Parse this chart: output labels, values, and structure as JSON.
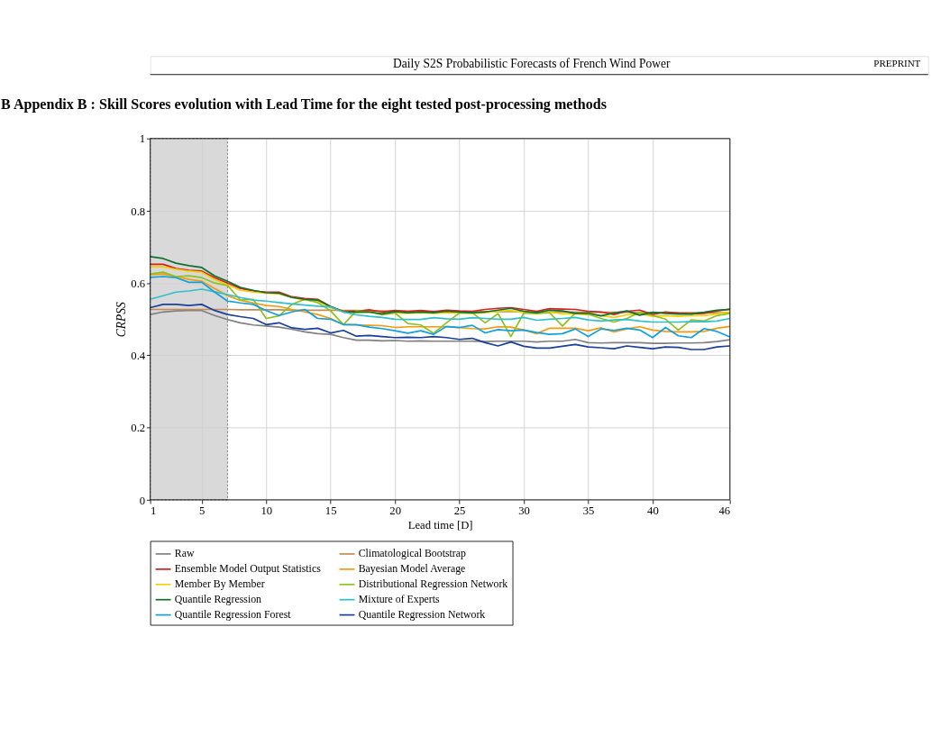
{
  "chart_data": {
    "type": "line",
    "title": "B    Appendix B : Skill Scores evolution with Lead Time for the eight tested post-processing methods",
    "annotations": [
      "Daily S2S Probabilistic Forecasts of French Wind Power",
      "PREPRINT"
    ],
    "xlabel": "Lead time [D]",
    "ylabel": "CRPSS",
    "x": [
      1,
      2,
      3,
      4,
      5,
      6,
      7,
      8,
      9,
      10,
      11,
      12,
      13,
      14,
      15,
      16,
      17,
      18,
      19,
      20,
      21,
      22,
      23,
      24,
      25,
      26,
      27,
      28,
      29,
      30,
      31,
      32,
      33,
      34,
      35,
      36,
      37,
      38,
      39,
      40,
      41,
      42,
      43,
      44,
      45,
      46
    ],
    "xlim": [
      1,
      46
    ],
    "xticks": [
      1,
      5,
      10,
      15,
      20,
      25,
      30,
      35,
      40,
      46
    ],
    "ylim": [
      0,
      1
    ],
    "yticks": [
      0,
      0.2,
      0.4,
      0.6,
      0.8,
      1
    ],
    "grid": true,
    "legend": "bottom",
    "marker": "none",
    "line_style": "solid",
    "bands": [
      {
        "axis": "x",
        "from": 1,
        "to": 7,
        "color": "#d0d0d0"
      }
    ],
    "series": [
      {
        "name": "Raw",
        "color": "#808080",
        "values": [
          0.513,
          0.52,
          0.523,
          0.524,
          0.524,
          0.51,
          0.499,
          0.49,
          0.484,
          0.481,
          0.478,
          0.472,
          0.465,
          0.46,
          0.458,
          0.449,
          0.442,
          0.442,
          0.44,
          0.441,
          0.439,
          0.44,
          0.439,
          0.439,
          0.439,
          0.439,
          0.438,
          0.439,
          0.439,
          0.439,
          0.437,
          0.439,
          0.439,
          0.444,
          0.435,
          0.434,
          0.435,
          0.435,
          0.435,
          0.433,
          0.433,
          0.434,
          0.434,
          0.435,
          0.438,
          0.443
        ]
      },
      {
        "name": "Climatological Bootstrap",
        "color": "#c48a55",
        "values": [
          0.527,
          0.527,
          0.527,
          0.527,
          0.527,
          0.527,
          0.527,
          0.526,
          0.526,
          0.526,
          0.526,
          0.525,
          0.525,
          0.525,
          0.525,
          0.524,
          0.524,
          0.523,
          0.523,
          0.522,
          0.522,
          0.521,
          0.521,
          0.521,
          0.521,
          0.521,
          0.521,
          0.521,
          0.521,
          0.521,
          0.52,
          0.52,
          0.52,
          0.52,
          0.519,
          0.519,
          0.519,
          0.519,
          0.518,
          0.518,
          0.518,
          0.518,
          0.518,
          0.518,
          0.518,
          0.518
        ]
      },
      {
        "name": "Ensemble Model Output Statistics",
        "color": "#d62020",
        "values": [
          0.652,
          0.652,
          0.64,
          0.635,
          0.633,
          0.615,
          0.6,
          0.585,
          0.578,
          0.575,
          0.575,
          0.562,
          0.557,
          0.555,
          0.535,
          0.522,
          0.522,
          0.526,
          0.52,
          0.524,
          0.522,
          0.524,
          0.521,
          0.525,
          0.523,
          0.522,
          0.527,
          0.53,
          0.532,
          0.527,
          0.522,
          0.529,
          0.528,
          0.527,
          0.522,
          0.52,
          0.513,
          0.522,
          0.525,
          0.513,
          0.52,
          0.517,
          0.515,
          0.516,
          0.523,
          0.528
        ]
      },
      {
        "name": "Bayesian Model Average",
        "color": "#f59a10",
        "values": [
          0.623,
          0.625,
          0.618,
          0.61,
          0.605,
          0.585,
          0.565,
          0.552,
          0.545,
          0.538,
          0.535,
          0.527,
          0.52,
          0.513,
          0.502,
          0.485,
          0.484,
          0.483,
          0.482,
          0.477,
          0.479,
          0.479,
          0.479,
          0.479,
          0.477,
          0.474,
          0.473,
          0.479,
          0.478,
          0.47,
          0.46,
          0.475,
          0.475,
          0.475,
          0.468,
          0.476,
          0.465,
          0.473,
          0.479,
          0.47,
          0.466,
          0.465,
          0.465,
          0.466,
          0.475,
          0.48
        ]
      },
      {
        "name": "Member By Member",
        "color": "#f0d000",
        "values": [
          0.645,
          0.645,
          0.638,
          0.633,
          0.63,
          0.61,
          0.595,
          0.58,
          0.575,
          0.572,
          0.57,
          0.56,
          0.553,
          0.55,
          0.532,
          0.52,
          0.518,
          0.52,
          0.515,
          0.518,
          0.516,
          0.518,
          0.516,
          0.518,
          0.517,
          0.516,
          0.518,
          0.522,
          0.524,
          0.518,
          0.515,
          0.52,
          0.515,
          0.515,
          0.512,
          0.51,
          0.505,
          0.512,
          0.515,
          0.508,
          0.51,
          0.508,
          0.51,
          0.51,
          0.515,
          0.52
        ]
      },
      {
        "name": "Distributional Regression Network",
        "color": "#90c020",
        "values": [
          0.625,
          0.63,
          0.618,
          0.62,
          0.615,
          0.6,
          0.593,
          0.553,
          0.555,
          0.502,
          0.509,
          0.541,
          0.555,
          0.546,
          0.523,
          0.485,
          0.523,
          0.52,
          0.512,
          0.517,
          0.488,
          0.484,
          0.461,
          0.49,
          0.517,
          0.518,
          0.49,
          0.515,
          0.452,
          0.517,
          0.516,
          0.518,
          0.481,
          0.517,
          0.514,
          0.502,
          0.492,
          0.502,
          0.519,
          0.51,
          0.5,
          0.47,
          0.498,
          0.495,
          0.51,
          0.516
        ]
      },
      {
        "name": "Quantile Regression",
        "color": "#107030",
        "values": [
          0.673,
          0.668,
          0.655,
          0.648,
          0.643,
          0.62,
          0.605,
          0.588,
          0.58,
          0.573,
          0.572,
          0.56,
          0.555,
          0.553,
          0.535,
          0.52,
          0.52,
          0.52,
          0.515,
          0.521,
          0.518,
          0.52,
          0.518,
          0.522,
          0.52,
          0.518,
          0.52,
          0.525,
          0.53,
          0.522,
          0.518,
          0.525,
          0.523,
          0.516,
          0.517,
          0.509,
          0.517,
          0.523,
          0.511,
          0.519,
          0.516,
          0.514,
          0.514,
          0.519,
          0.525,
          0.527
        ]
      },
      {
        "name": "Mixture of Experts",
        "color": "#30c0c8",
        "values": [
          0.555,
          0.565,
          0.575,
          0.578,
          0.583,
          0.576,
          0.568,
          0.56,
          0.553,
          0.55,
          0.546,
          0.542,
          0.539,
          0.536,
          0.534,
          0.52,
          0.512,
          0.508,
          0.505,
          0.5,
          0.499,
          0.499,
          0.504,
          0.501,
          0.5,
          0.504,
          0.502,
          0.5,
          0.5,
          0.505,
          0.497,
          0.5,
          0.502,
          0.505,
          0.498,
          0.495,
          0.498,
          0.499,
          0.495,
          0.492,
          0.492,
          0.492,
          0.493,
          0.493,
          0.495,
          0.502
        ]
      },
      {
        "name": "Quantile Regression Forest",
        "color": "#10a0e0",
        "values": [
          0.616,
          0.618,
          0.615,
          0.602,
          0.602,
          0.575,
          0.55,
          0.545,
          0.541,
          0.524,
          0.51,
          0.52,
          0.527,
          0.502,
          0.5,
          0.485,
          0.485,
          0.478,
          0.474,
          0.468,
          0.461,
          0.468,
          0.458,
          0.48,
          0.477,
          0.483,
          0.462,
          0.471,
          0.468,
          0.47,
          0.463,
          0.458,
          0.46,
          0.473,
          0.452,
          0.473,
          0.469,
          0.475,
          0.47,
          0.449,
          0.477,
          0.454,
          0.449,
          0.474,
          0.466,
          0.451
        ]
      },
      {
        "name": "Quantile Regression Network",
        "color": "#1a3f9a",
        "values": [
          0.532,
          0.541,
          0.541,
          0.538,
          0.541,
          0.524,
          0.513,
          0.507,
          0.502,
          0.485,
          0.49,
          0.476,
          0.472,
          0.475,
          0.462,
          0.469,
          0.453,
          0.455,
          0.452,
          0.449,
          0.45,
          0.449,
          0.452,
          0.449,
          0.444,
          0.447,
          0.435,
          0.426,
          0.437,
          0.425,
          0.42,
          0.42,
          0.425,
          0.43,
          0.423,
          0.421,
          0.418,
          0.426,
          0.422,
          0.418,
          0.423,
          0.422,
          0.416,
          0.416,
          0.423,
          0.426
        ]
      }
    ]
  }
}
